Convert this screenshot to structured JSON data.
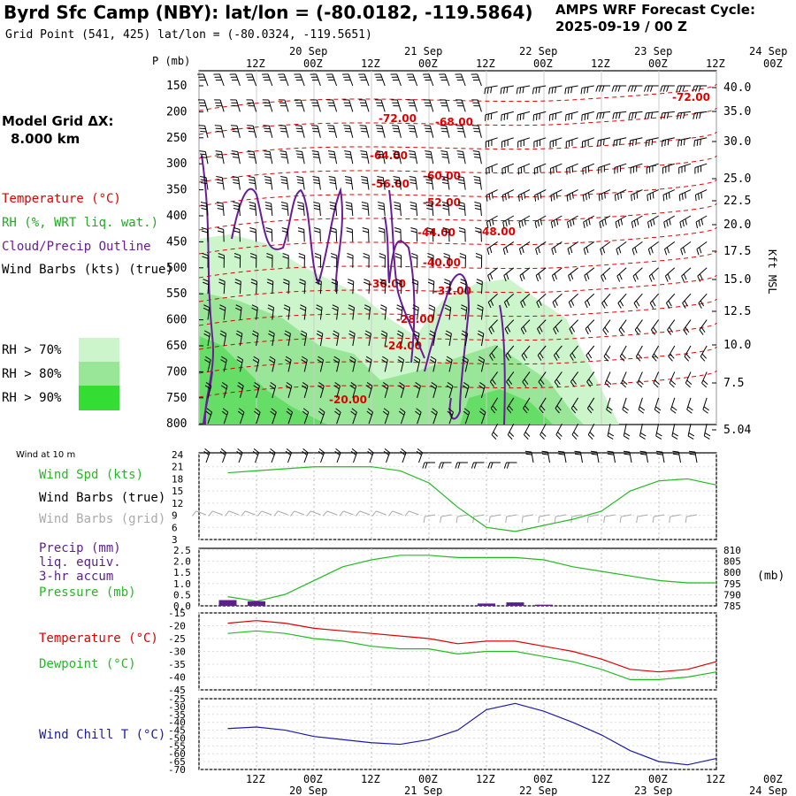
{
  "header": {
    "title": "Byrd Sfc Camp (NBY):  lat/lon = (-80.0182, -119.5864)",
    "subtitle": "Grid Point (541, 425) lat/lon = (-80.0324, -119.5651)",
    "cycle_label": "AMPS WRF Forecast Cycle:",
    "cycle_value": "2025-09-19 / 00  Z"
  },
  "left_labels": {
    "model_grid": "Model Grid ΔX:",
    "grid_km": "8.000 km",
    "temperature": "Temperature (°C)",
    "rh": "RH (%, WRT liq. wat.)",
    "cloud": "Cloud/Precip Outline",
    "wind_barbs": "Wind Barbs (kts) (true)",
    "rh70": "RH > 70%",
    "rh80": "RH > 80%",
    "rh90": "RH > 90%",
    "wind10m": "Wind at 10 m",
    "wind_spd": "Wind Spd (kts)",
    "wind_barbs_true": "Wind Barbs (true)",
    "wind_barbs_grid": "Wind Barbs (grid)",
    "precip1": "Precip (mm)",
    "precip2": "liq. equiv.",
    "precip3": "3-hr accum",
    "pressure": "Pressure (mb)",
    "temp2": "Temperature (°C)",
    "dewpoint": "Dewpoint (°C)",
    "windchill": "Wind Chill T (°C)",
    "p_unit": "P (mb)",
    "kft": "Kft MSL",
    "mb_right": "(mb)"
  },
  "colors": {
    "temperature": "#e00000",
    "rh70": "#ccf5cc",
    "rh80": "#99e699",
    "rh90": "#33dd33",
    "cloud": "#6a1b9a",
    "wind_spd": "#22bb22",
    "grid_barbs": "#aaaaaa",
    "windchill": "#1a1aaa",
    "precip": "#5b1f8a"
  },
  "time_axis": {
    "top_hours": [
      "12Z",
      "00Z",
      "12Z",
      "00Z",
      "12Z",
      "00Z",
      "12Z",
      "00Z",
      "12Z",
      "00Z"
    ],
    "top_dates": [
      "20 Sep",
      "21 Sep",
      "22 Sep",
      "23 Sep",
      "24 Sep"
    ],
    "bottom_hours": [
      "12Z",
      "00Z",
      "12Z",
      "00Z",
      "12Z",
      "00Z",
      "12Z",
      "00Z",
      "12Z",
      "00Z"
    ],
    "bottom_dates": [
      "20 Sep",
      "21 Sep",
      "22 Sep",
      "23 Sep",
      "24 Sep"
    ]
  },
  "chart_data": [
    {
      "type": "heatmap",
      "name": "time-height cross section",
      "x_hours": [
        12,
        108
      ],
      "pressure_levels": [
        "150",
        "200",
        "250",
        "300",
        "350",
        "400",
        "450",
        "500",
        "550",
        "600",
        "650",
        "700",
        "750",
        "800"
      ],
      "kft_labels": [
        "40.0",
        "35.0",
        "30.0",
        "25.0",
        "22.5",
        "20.0",
        "17.5",
        "15.0",
        "12.5",
        "10.0",
        "7.5",
        "5.04"
      ],
      "temperature_labels": [
        "-72.00",
        "-72.00",
        "-68.00",
        "-64.00",
        "-60.00",
        "-56.00",
        "-52.00",
        "-48.00",
        "-44.00",
        "-40.00",
        "-36.00",
        "-32.00",
        "-28.00",
        "-24.00",
        "-20.00"
      ]
    },
    {
      "type": "line",
      "name": "wind speed 10 m",
      "yticks": [
        3,
        6,
        9,
        12,
        15,
        18,
        21,
        24
      ],
      "ylim": [
        3,
        24
      ],
      "x": [
        6,
        12,
        18,
        24,
        30,
        36,
        42,
        48,
        54,
        60,
        66,
        72,
        78,
        84,
        90,
        96,
        102,
        108
      ],
      "values": [
        19.5,
        20,
        20.5,
        21,
        21,
        21,
        20,
        17,
        11,
        6,
        5,
        6.5,
        8,
        10,
        15,
        17.5,
        18,
        16.5
      ]
    },
    {
      "type": "line",
      "name": "pressure and precip",
      "yticks_left": [
        "2.5",
        "2.0",
        "1.5",
        "1.0",
        "0.5",
        "0.0"
      ],
      "yticks_right": [
        "810",
        "805",
        "800",
        "795",
        "790",
        "785"
      ],
      "x": [
        6,
        12,
        18,
        24,
        30,
        36,
        42,
        48,
        54,
        60,
        66,
        72,
        78,
        84,
        90,
        96,
        102,
        108
      ],
      "pressure": [
        789,
        787,
        790,
        796,
        802,
        805,
        807,
        807,
        806,
        806,
        806,
        805,
        802,
        800,
        798,
        796,
        795,
        795
      ],
      "precip": [
        0.25,
        0.2,
        0,
        0,
        0,
        0,
        0,
        0,
        0,
        0.1,
        0.15,
        0.05,
        0,
        0,
        0,
        0,
        0,
        0
      ]
    },
    {
      "type": "line",
      "name": "temperature and dewpoint",
      "yticks": [
        -15,
        -20,
        -25,
        -30,
        -35,
        -40,
        -45
      ],
      "ylim": [
        -45,
        -15
      ],
      "x": [
        6,
        12,
        18,
        24,
        30,
        36,
        42,
        48,
        54,
        60,
        66,
        72,
        78,
        84,
        90,
        96,
        102,
        108
      ],
      "series": [
        {
          "name": "Temperature (°C)",
          "values": [
            -19,
            -18,
            -19,
            -21,
            -22,
            -23,
            -24,
            -25,
            -27,
            -26,
            -26,
            -28,
            -30,
            -33,
            -37,
            -38,
            -37,
            -34
          ]
        },
        {
          "name": "Dewpoint (°C)",
          "values": [
            -23,
            -22,
            -23,
            -25,
            -26,
            -28,
            -29,
            -29,
            -31,
            -30,
            -30,
            -32,
            -34,
            -37,
            -41,
            -41,
            -40,
            -38
          ]
        }
      ]
    },
    {
      "type": "line",
      "name": "wind chill",
      "yticks": [
        "-25",
        "-30",
        "-35",
        "-40",
        "-45",
        "-50",
        "-55",
        "-60",
        "-65",
        "-70"
      ],
      "ylim": [
        -70,
        -25
      ],
      "x": [
        6,
        12,
        18,
        24,
        30,
        36,
        42,
        48,
        54,
        60,
        66,
        72,
        78,
        84,
        90,
        96,
        102,
        108
      ],
      "values": [
        -44,
        -43,
        -45,
        -49,
        -51,
        -53,
        -54,
        -51,
        -45,
        -32,
        -28,
        -33,
        -40,
        -48,
        -58,
        -65,
        -67,
        -63
      ]
    }
  ]
}
